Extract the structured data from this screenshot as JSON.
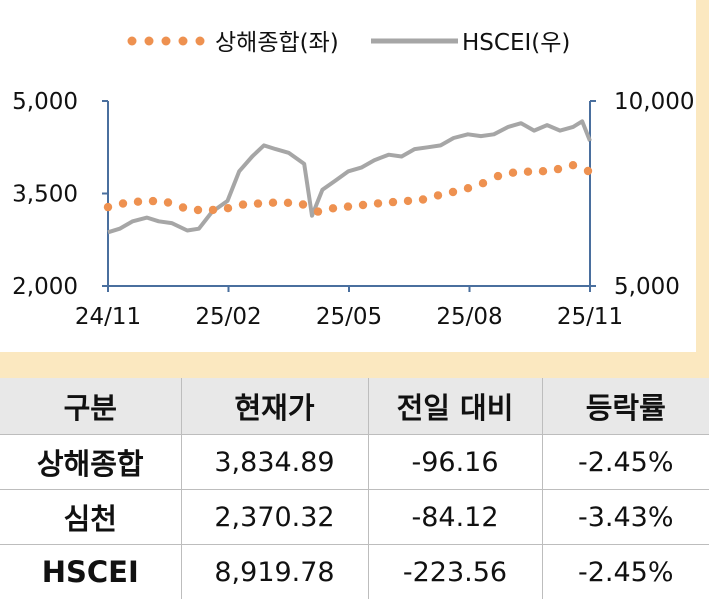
{
  "chart_data": {
    "type": "line",
    "legend": {
      "position": "top"
    },
    "grid": false,
    "x_ticks": [
      "24/11",
      "25/02",
      "25/05",
      "25/08",
      "25/11"
    ],
    "y_left": {
      "lim": [
        2000,
        5000
      ],
      "ticks": [
        "2,000",
        "3,500",
        "5,000"
      ]
    },
    "y_right": {
      "lim": [
        5000,
        10000
      ],
      "ticks": [
        "5,000",
        "10,000"
      ]
    },
    "colors": {
      "shanghai": "#ee9150",
      "hscei": "#a6a6a6",
      "axis": "#4a6f9e"
    },
    "series": [
      {
        "name": "상해종합(좌)",
        "axis": "left",
        "style": "dotted",
        "x": [
          "24/11/01",
          "24/11/15",
          "24/12/01",
          "24/12/15",
          "25/01/01",
          "25/01/15",
          "25/02/01",
          "25/02/15",
          "25/03/01",
          "25/03/15",
          "25/04/01",
          "25/04/07",
          "25/04/15",
          "25/05/01",
          "25/05/15",
          "25/06/01",
          "25/06/15",
          "25/07/01",
          "25/07/15",
          "25/08/01",
          "25/08/15",
          "25/09/01",
          "25/09/15",
          "25/10/01",
          "25/10/15",
          "25/10/30",
          "25/11/07"
        ],
        "values": [
          3280,
          3350,
          3380,
          3370,
          3250,
          3220,
          3260,
          3330,
          3340,
          3360,
          3320,
          3160,
          3240,
          3280,
          3310,
          3350,
          3370,
          3400,
          3480,
          3560,
          3650,
          3820,
          3850,
          3860,
          3900,
          3990,
          3834.89
        ]
      },
      {
        "name": "HSCEI(우)",
        "axis": "right",
        "style": "solid",
        "x": [
          "24/11/01",
          "24/11/10",
          "24/11/20",
          "24/12/01",
          "24/12/10",
          "24/12/20",
          "25/01/01",
          "25/01/10",
          "25/01/20",
          "25/02/01",
          "25/02/10",
          "25/02/20",
          "25/03/01",
          "25/03/10",
          "25/03/20",
          "25/04/01",
          "25/04/07",
          "25/04/15",
          "25/04/25",
          "25/05/05",
          "25/05/15",
          "25/05/25",
          "25/06/05",
          "25/06/15",
          "25/06/25",
          "25/07/05",
          "25/07/15",
          "25/07/25",
          "25/08/05",
          "25/08/15",
          "25/08/25",
          "25/09/05",
          "25/09/15",
          "25/09/25",
          "25/10/05",
          "25/10/15",
          "25/10/25",
          "25/11/01",
          "25/11/07"
        ],
        "values": [
          6450,
          6550,
          6750,
          6850,
          6750,
          6700,
          6500,
          6550,
          7000,
          7300,
          8100,
          8500,
          8800,
          8700,
          8600,
          8300,
          6900,
          7600,
          7850,
          8100,
          8200,
          8400,
          8550,
          8500,
          8700,
          8750,
          8800,
          9000,
          9100,
          9050,
          9100,
          9300,
          9400,
          9200,
          9350,
          9200,
          9300,
          9450,
          8919.78
        ]
      }
    ]
  },
  "table": {
    "headers": [
      "구분",
      "현재가",
      "전일 대비",
      "등락률"
    ],
    "rows": [
      [
        "상해종합",
        "3,834.89",
        "-96.16",
        "-2.45%"
      ],
      [
        "심천",
        "2,370.32",
        "-84.12",
        "-3.43%"
      ],
      [
        "HSCEI",
        "8,919.78",
        "-223.56",
        "-2.45%"
      ]
    ]
  }
}
